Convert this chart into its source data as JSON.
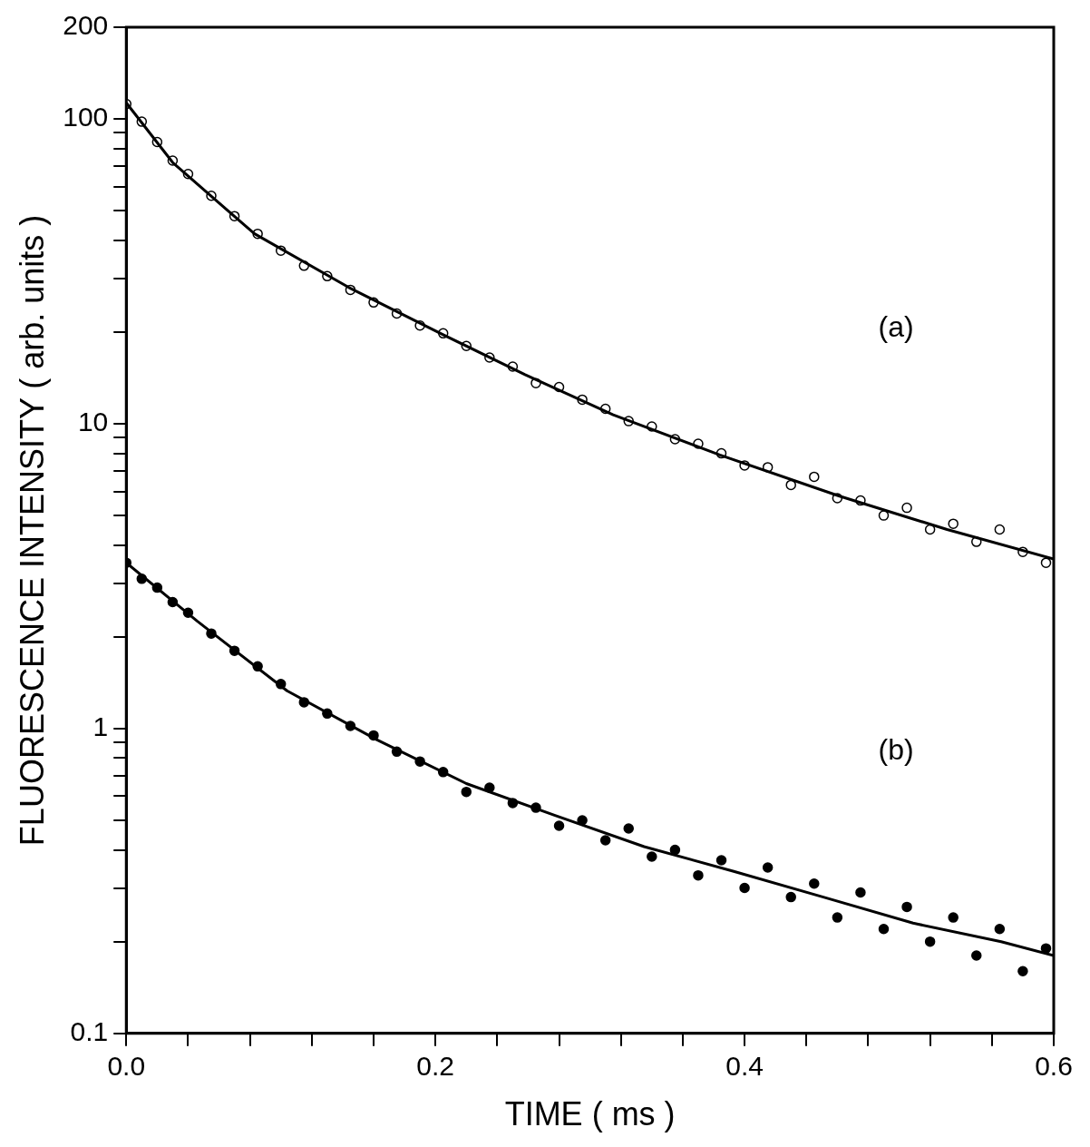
{
  "chart_data": {
    "type": "scatter",
    "xlabel": "TIME ( ms )",
    "ylabel": "FLUORESCENCE INTENSITY ( arb. units )",
    "log": "y",
    "grid": false,
    "legend": false,
    "xlim": [
      0,
      0.6
    ],
    "ylim": [
      0.1,
      200
    ],
    "xticks": [
      {
        "value": 0,
        "label": "0.0"
      },
      {
        "value": 0.04,
        "label": null
      },
      {
        "value": 0.08,
        "label": null
      },
      {
        "value": 0.12,
        "label": null
      },
      {
        "value": 0.16,
        "label": null
      },
      {
        "value": 0.2,
        "label": "0.2"
      },
      {
        "value": 0.24,
        "label": null
      },
      {
        "value": 0.28,
        "label": null
      },
      {
        "value": 0.32,
        "label": null
      },
      {
        "value": 0.36,
        "label": null
      },
      {
        "value": 0.4,
        "label": "0.4"
      },
      {
        "value": 0.44,
        "label": null
      },
      {
        "value": 0.48,
        "label": null
      },
      {
        "value": 0.52,
        "label": null
      },
      {
        "value": 0.56,
        "label": null
      },
      {
        "value": 0.6,
        "label": "0.6"
      }
    ],
    "yticks": [
      0.1,
      {
        "value": 0.2,
        "label": null
      },
      {
        "value": 0.3,
        "label": null
      },
      {
        "value": 0.4,
        "label": null
      },
      {
        "value": 0.5,
        "label": null
      },
      {
        "value": 0.6,
        "label": null
      },
      {
        "value": 0.7,
        "label": null
      },
      {
        "value": 0.8,
        "label": null
      },
      {
        "value": 0.9,
        "label": null
      },
      1,
      {
        "value": 2,
        "label": null
      },
      {
        "value": 3,
        "label": null
      },
      {
        "value": 4,
        "label": null
      },
      {
        "value": 5,
        "label": null
      },
      {
        "value": 6,
        "label": null
      },
      {
        "value": 7,
        "label": null
      },
      {
        "value": 8,
        "label": null
      },
      {
        "value": 9,
        "label": null
      },
      10,
      {
        "value": 20,
        "label": null
      },
      {
        "value": 30,
        "label": null
      },
      {
        "value": 40,
        "label": null
      },
      {
        "value": 50,
        "label": null
      },
      {
        "value": 60,
        "label": null
      },
      {
        "value": 70,
        "label": null
      },
      {
        "value": 80,
        "label": null
      },
      {
        "value": 90,
        "label": null
      },
      100,
      200
    ],
    "annotations": [
      "(a)",
      "(b)"
    ],
    "series": [
      {
        "type": "scatter",
        "marker": "circle",
        "color": "#000000",
        "x": [
          0,
          0.01,
          0.02,
          0.03,
          0.04,
          0.055,
          0.07,
          0.085,
          0.1,
          0.115,
          0.13,
          0.145,
          0.16,
          0.175,
          0.19,
          0.205,
          0.22,
          0.235,
          0.25,
          0.265,
          0.28,
          0.295,
          0.31,
          0.325,
          0.34,
          0.355,
          0.37,
          0.385,
          0.4,
          0.415,
          0.43,
          0.445,
          0.46,
          0.475,
          0.49,
          0.505,
          0.52,
          0.535,
          0.55,
          0.565,
          0.58,
          0.595
        ],
        "values": [
          112,
          98,
          84,
          73,
          66,
          56,
          48,
          42,
          37,
          33,
          30.5,
          27.5,
          25,
          23,
          21,
          19.8,
          18,
          16.5,
          15.4,
          13.6,
          13.2,
          12,
          11.2,
          10.2,
          9.8,
          8.9,
          8.6,
          8.0,
          7.3,
          7.2,
          6.3,
          6.7,
          5.7,
          5.6,
          5.0,
          5.3,
          4.5,
          4.7,
          4.1,
          4.5,
          3.8,
          3.5
        ]
      },
      {
        "type": "line",
        "marker": "none",
        "color": "#000000",
        "x": [
          0,
          0.03,
          0.083,
          0.144,
          0.205,
          0.258,
          0.315,
          0.384,
          0.461,
          0.531,
          0.6
        ],
        "values": [
          113,
          72,
          42,
          28,
          19.6,
          14.5,
          10.7,
          7.9,
          5.8,
          4.5,
          3.6
        ]
      },
      {
        "type": "scatter",
        "marker": "circle",
        "color": "#000000",
        "x": [
          0,
          0.01,
          0.02,
          0.03,
          0.04,
          0.055,
          0.07,
          0.085,
          0.1,
          0.115,
          0.13,
          0.145,
          0.16,
          0.175,
          0.19,
          0.205,
          0.22,
          0.235,
          0.25,
          0.265,
          0.28,
          0.295,
          0.31,
          0.325,
          0.34,
          0.355,
          0.37,
          0.385,
          0.4,
          0.415,
          0.43,
          0.445,
          0.46,
          0.475,
          0.49,
          0.505,
          0.52,
          0.535,
          0.55,
          0.565,
          0.58,
          0.595
        ],
        "values": [
          3.5,
          3.1,
          2.9,
          2.6,
          2.4,
          2.05,
          1.8,
          1.6,
          1.4,
          1.22,
          1.12,
          1.02,
          0.95,
          0.84,
          0.78,
          0.72,
          0.62,
          0.64,
          0.57,
          0.55,
          0.48,
          0.5,
          0.43,
          0.47,
          0.38,
          0.4,
          0.33,
          0.37,
          0.3,
          0.35,
          0.28,
          0.31,
          0.24,
          0.29,
          0.22,
          0.26,
          0.2,
          0.24,
          0.18,
          0.22,
          0.16,
          0.19
        ]
      },
      {
        "type": "line",
        "marker": "none",
        "color": "#000000",
        "x": [
          0,
          0.046,
          0.104,
          0.162,
          0.22,
          0.277,
          0.335,
          0.393,
          0.451,
          0.509,
          0.566,
          0.6
        ],
        "values": [
          3.5,
          2.25,
          1.33,
          0.92,
          0.66,
          0.52,
          0.41,
          0.34,
          0.28,
          0.23,
          0.2,
          0.18
        ]
      }
    ]
  }
}
